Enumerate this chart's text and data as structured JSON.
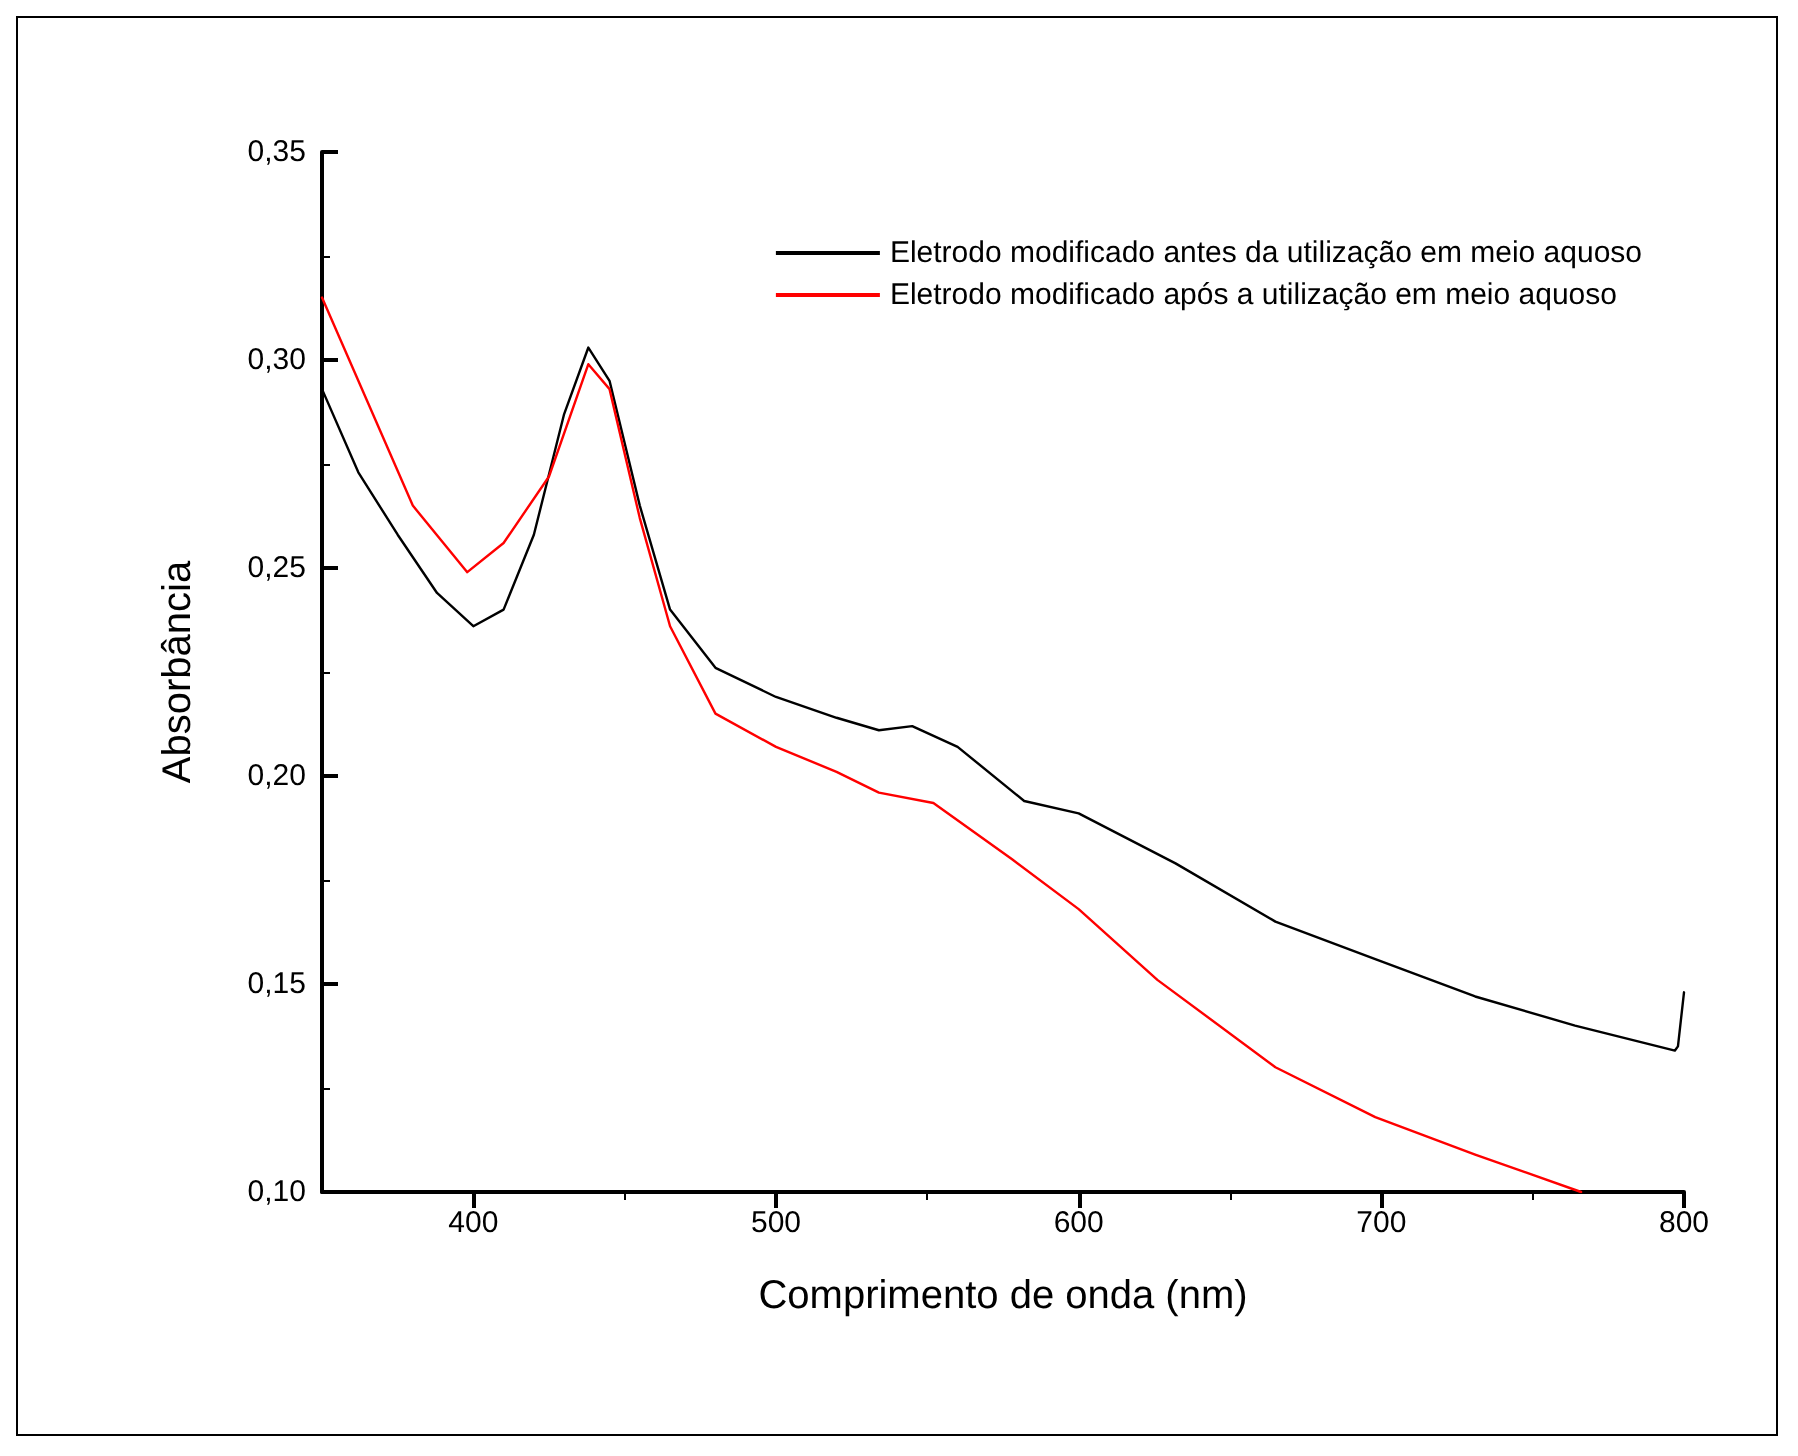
{
  "chart_data": {
    "type": "line",
    "xlabel": "Comprimento de onda (nm)",
    "ylabel": "Absorbância",
    "xlim": [
      350,
      800
    ],
    "xticks": [
      400,
      500,
      600,
      700,
      800
    ],
    "ylim": [
      0.1,
      0.35
    ],
    "yticks": [
      {
        "value": 0.1,
        "label": "0,10"
      },
      {
        "value": 0.15,
        "label": "0,15"
      },
      {
        "value": 0.2,
        "label": "0,20"
      },
      {
        "value": 0.25,
        "label": "0,25"
      },
      {
        "value": 0.3,
        "label": "0,30"
      },
      {
        "value": 0.35,
        "label": "0,35"
      }
    ],
    "legend": "top right",
    "grid": false,
    "marker": "none",
    "line_style": "solid",
    "series": [
      {
        "name": "Eletrodo modificado antes da utilização em meio aquoso",
        "color": "#000000",
        "x": [
          350,
          362,
          375,
          388,
          400,
          410,
          420,
          430,
          438,
          445,
          455,
          465,
          480,
          500,
          520,
          534,
          545,
          560,
          582,
          600,
          632,
          665,
          698,
          731,
          764,
          797,
          798,
          800
        ],
        "values": [
          0.293,
          0.273,
          0.258,
          0.244,
          0.236,
          0.24,
          0.258,
          0.287,
          0.303,
          0.295,
          0.265,
          0.24,
          0.226,
          0.219,
          0.214,
          0.211,
          0.212,
          0.207,
          0.194,
          0.191,
          0.179,
          0.165,
          0.156,
          0.147,
          0.14,
          0.134,
          0.135,
          0.148
        ]
      },
      {
        "name": "Eletrodo modificado após a utilização em meio aquoso",
        "color": "#ff0000",
        "x": [
          350,
          365,
          380,
          398,
          410,
          425,
          438,
          445,
          455,
          465,
          480,
          500,
          520,
          534,
          552,
          578,
          600,
          626,
          665,
          698,
          731,
          766
        ],
        "values": [
          0.315,
          0.29,
          0.265,
          0.249,
          0.256,
          0.272,
          0.299,
          0.293,
          0.262,
          0.236,
          0.215,
          0.207,
          0.201,
          0.196,
          0.1935,
          0.18,
          0.168,
          0.151,
          0.13,
          0.118,
          0.109,
          0.1
        ]
      }
    ]
  }
}
